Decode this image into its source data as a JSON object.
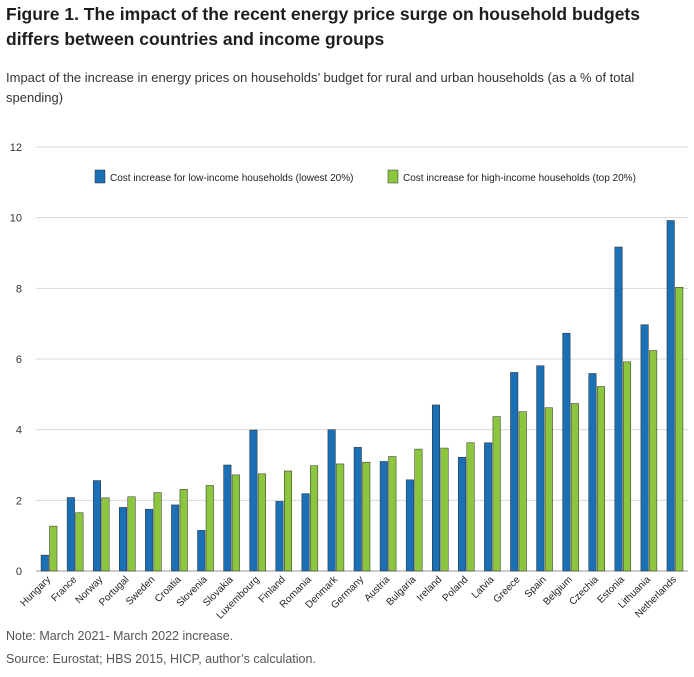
{
  "title": "Figure 1. The impact of the recent energy price surge on household budgets differs between countries and income groups",
  "subtitle": "Impact of the increase in energy prices on households’ budget for rural and urban households (as a % of total spending)",
  "notes": {
    "note": "Note: March 2021- March 2022 increase.",
    "source": "Source: Eurostat; HBS 2015, HICP, author’s calculation."
  },
  "colors": {
    "low": "#1a6fb5",
    "high": "#8cc63f",
    "grid": "#d8d8d8"
  },
  "chart_data": {
    "type": "bar",
    "title": "",
    "xlabel": "",
    "ylabel": "",
    "ylim": [
      0,
      12
    ],
    "yticks": [
      "0",
      "2",
      "4",
      "6",
      "8",
      "10",
      "12"
    ],
    "grid": true,
    "legend_position": "top",
    "categories": [
      "Hungary",
      "France",
      "Norway",
      "Portugal",
      "Sweden",
      "Croatia",
      "Slovenia",
      "Slovakia",
      "Luxembourg",
      "Finland",
      "Romania",
      "Denmark",
      "Germany",
      "Austria",
      "Bulgaria",
      "Ireland",
      "Poland",
      "Latvia",
      "Greece",
      "Spain",
      "Belgium",
      "Czechia",
      "Estonia",
      "Lithuania",
      "Netherlands"
    ],
    "series": [
      {
        "name": "Cost increase for low-income households (lowest 20%)",
        "values": [
          0.45,
          2.08,
          2.56,
          1.8,
          1.75,
          1.87,
          1.15,
          3.0,
          3.99,
          1.97,
          2.19,
          4.0,
          3.5,
          3.1,
          2.58,
          4.7,
          3.22,
          3.63,
          5.62,
          5.81,
          6.73,
          5.59,
          9.17,
          6.97,
          9.92
        ]
      },
      {
        "name": "Cost increase for high-income households (top 20%)",
        "values": [
          1.27,
          1.65,
          2.07,
          2.1,
          2.22,
          2.31,
          2.42,
          2.72,
          2.75,
          2.83,
          2.98,
          3.03,
          3.08,
          3.24,
          3.45,
          3.48,
          3.63,
          4.37,
          4.51,
          4.62,
          4.74,
          5.22,
          5.92,
          6.24,
          8.03
        ]
      }
    ]
  }
}
